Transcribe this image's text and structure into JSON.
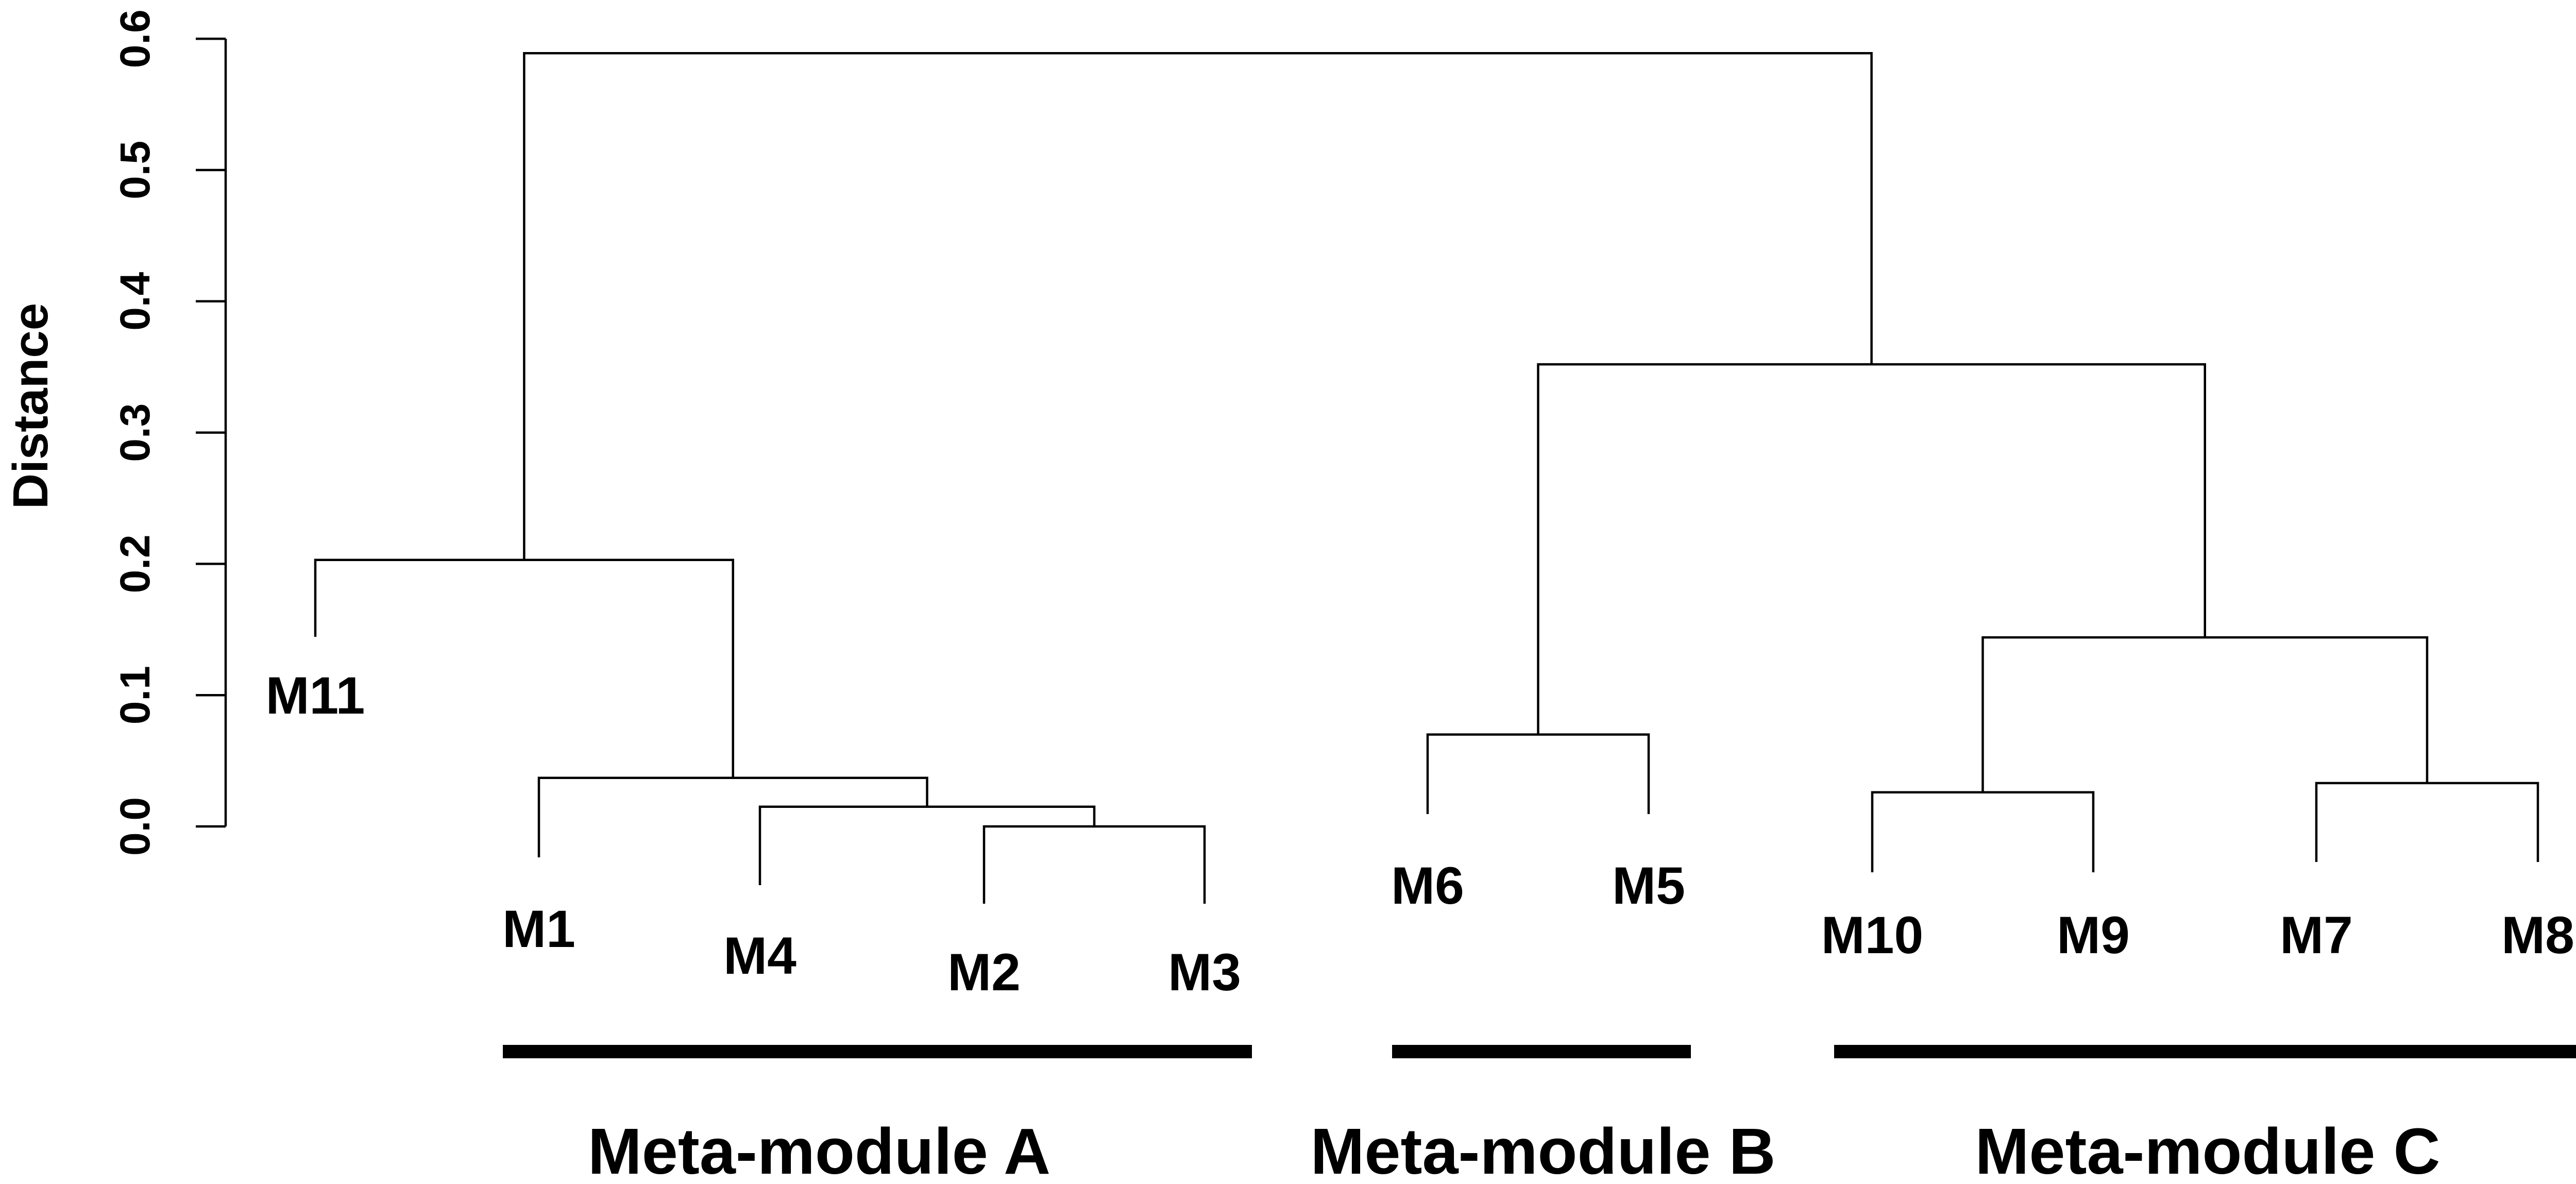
{
  "chart_data": {
    "type": "dendrogram",
    "title": "",
    "ylabel": "Distance",
    "ylim": [
      0.0,
      0.6
    ],
    "yticks": [
      0.0,
      0.1,
      0.2,
      0.3,
      0.4,
      0.5,
      0.6
    ],
    "ytick_labels": [
      "0.0",
      "0.1",
      "0.2",
      "0.3",
      "0.4",
      "0.5",
      "0.6"
    ],
    "leaves": [
      "M11",
      "M1",
      "M4",
      "M2",
      "M3",
      "M6",
      "M5",
      "M10",
      "M9",
      "M7",
      "M8"
    ],
    "merges": [
      {
        "id": "n1",
        "left": "M2",
        "right": "M3",
        "height": 0.0
      },
      {
        "id": "n2",
        "left": "M4",
        "right": "n1",
        "height": 0.015
      },
      {
        "id": "n3",
        "left": "M1",
        "right": "n2",
        "height": 0.037
      },
      {
        "id": "n4",
        "left": "M11",
        "right": "n3",
        "height": 0.203
      },
      {
        "id": "n5",
        "left": "M6",
        "right": "M5",
        "height": 0.07
      },
      {
        "id": "n6",
        "left": "M10",
        "right": "M9",
        "height": 0.026
      },
      {
        "id": "n7",
        "left": "M7",
        "right": "M8",
        "height": 0.033
      },
      {
        "id": "n8",
        "left": "n6",
        "right": "n7",
        "height": 0.144
      },
      {
        "id": "n9",
        "left": "n5",
        "right": "n8",
        "height": 0.352
      },
      {
        "id": "n10",
        "left": "n4",
        "right": "n9",
        "height": 0.589
      }
    ],
    "groups": [
      {
        "label": "Meta-module A",
        "members": [
          "M1",
          "M4",
          "M2",
          "M3"
        ]
      },
      {
        "label": "Meta-module B",
        "members": [
          "M6",
          "M5"
        ]
      },
      {
        "label": "Meta-module C",
        "members": [
          "M10",
          "M9",
          "M7",
          "M8"
        ]
      }
    ]
  }
}
